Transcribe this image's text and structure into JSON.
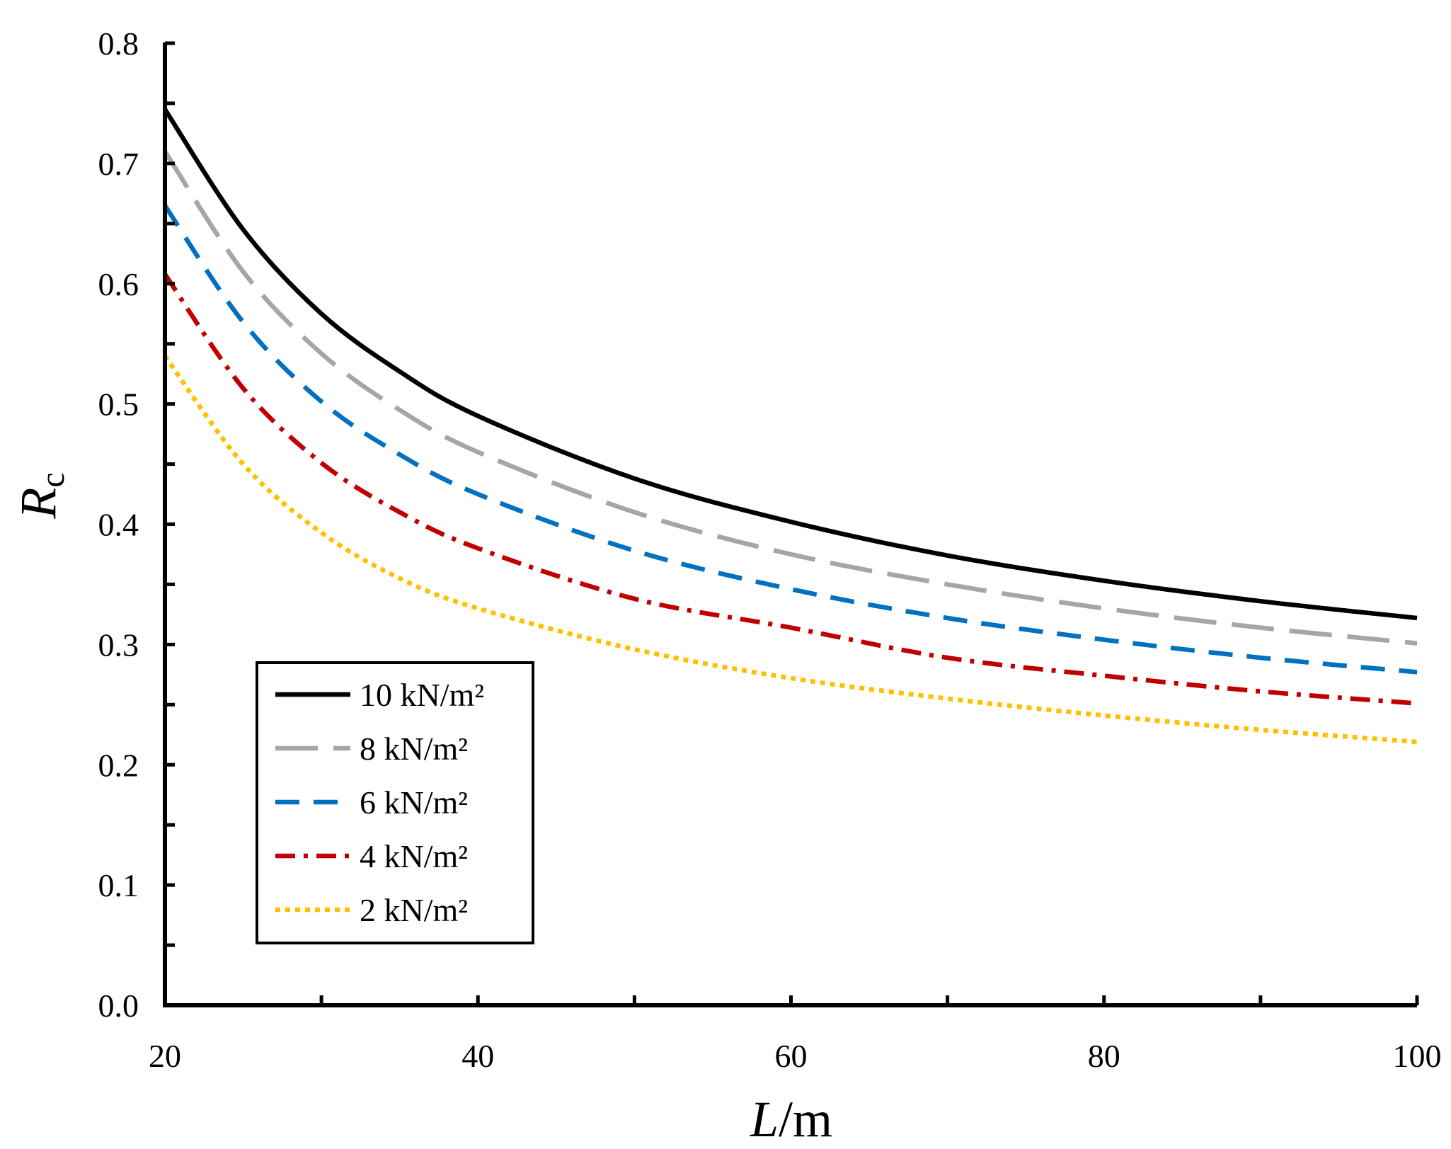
{
  "chart_data": {
    "type": "line",
    "title": "",
    "xlabel": "L/m",
    "xlabel_italic": "L",
    "xlabel_rest": "/m",
    "ylabel": "Rc",
    "ylabel_italic": "R",
    "ylabel_sub": "c",
    "xlim": [
      20,
      100
    ],
    "ylim": [
      0.0,
      0.8
    ],
    "xticks": [
      20,
      40,
      60,
      80,
      100
    ],
    "xtick_labels": [
      "20",
      "40",
      "60",
      "80",
      "100"
    ],
    "yticks": [
      0.0,
      0.1,
      0.2,
      0.3,
      0.4,
      0.5,
      0.6,
      0.7,
      0.8
    ],
    "ytick_labels": [
      "0.0",
      "0.1",
      "0.2",
      "0.3",
      "0.4",
      "0.5",
      "0.6",
      "0.7",
      "0.8"
    ],
    "grid": false,
    "legend_position": "bottom-left",
    "x": [
      20,
      25,
      30,
      35,
      40,
      50,
      60,
      70,
      80,
      90,
      100
    ],
    "series": [
      {
        "name": "10 kN/m²",
        "color": "#000000",
        "style": "solid",
        "values": [
          0.745,
          0.645,
          0.575,
          0.527,
          0.49,
          0.438,
          0.402,
          0.374,
          0.353,
          0.336,
          0.322
        ]
      },
      {
        "name": "8 kN/m²",
        "color": "#a6a6a6",
        "style": "long-dash",
        "values": [
          0.71,
          0.61,
          0.542,
          0.495,
          0.46,
          0.41,
          0.375,
          0.35,
          0.33,
          0.314,
          0.301
        ]
      },
      {
        "name": "6 kN/m²",
        "color": "#0070c0",
        "style": "dash",
        "values": [
          0.665,
          0.568,
          0.502,
          0.458,
          0.425,
          0.378,
          0.346,
          0.322,
          0.304,
          0.289,
          0.277
        ]
      },
      {
        "name": "4 kN/m²",
        "color": "#c00000",
        "style": "dash-dot",
        "values": [
          0.608,
          0.513,
          0.451,
          0.41,
          0.38,
          0.338,
          0.314,
          0.289,
          0.274,
          0.261,
          0.251
        ]
      },
      {
        "name": "2 kN/m²",
        "color": "#ffc000",
        "style": "dot",
        "values": [
          0.54,
          0.45,
          0.393,
          0.355,
          0.33,
          0.296,
          0.272,
          0.255,
          0.241,
          0.229,
          0.219
        ]
      }
    ]
  }
}
